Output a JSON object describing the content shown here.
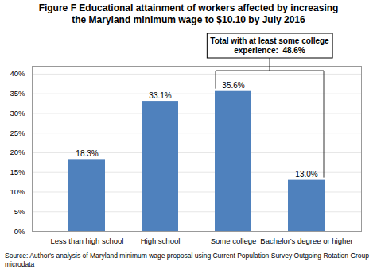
{
  "chart_data": {
    "type": "bar",
    "title": "Figure F Educational attainment of workers affected by increasing\nthe Maryland minimum wage to $10.10 by July 2016",
    "categories": [
      "Less than high school",
      "High school",
      "Some college",
      "Bachelor's degree or higher"
    ],
    "values": [
      18.3,
      33.1,
      35.6,
      13.0
    ],
    "value_labels": [
      "18.3%",
      "33.1%",
      "35.6%",
      "13.0%"
    ],
    "data_labels": true,
    "color": "#4F81BD",
    "ylim": [
      0,
      42
    ],
    "yticks": [
      {
        "value": 0,
        "label": "0%"
      },
      {
        "value": 5,
        "label": "5%"
      },
      {
        "value": 10,
        "label": "10%"
      },
      {
        "value": 15,
        "label": "15%"
      },
      {
        "value": 20,
        "label": "20%"
      },
      {
        "value": 25,
        "label": "25%"
      },
      {
        "value": 30,
        "label": "30%"
      },
      {
        "value": 35,
        "label": "35%"
      },
      {
        "value": 40,
        "label": "40%"
      }
    ],
    "grid": true,
    "annotations": [
      "Total with at least some college\nexperience:  48.6%"
    ],
    "caption": "Source: Author's analysis of Maryland minimum wage proposal using Current Population Survey Outgoing Rotation Group microdata"
  }
}
